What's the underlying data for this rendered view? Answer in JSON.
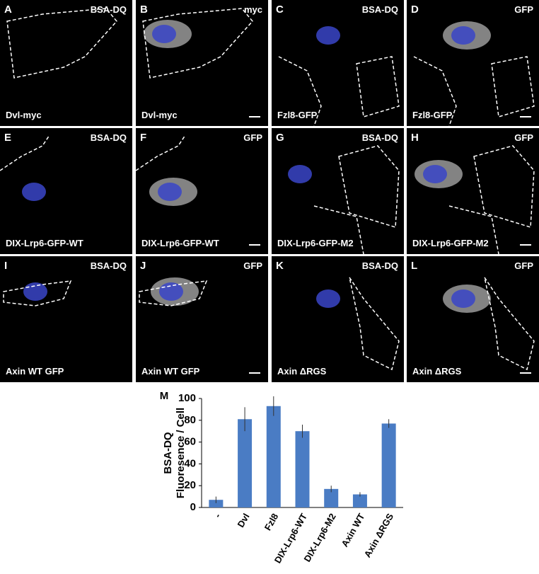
{
  "panels": [
    {
      "letter": "A",
      "stain": "BSA-DQ",
      "construct": "Dvl-myc"
    },
    {
      "letter": "B",
      "stain": "myc",
      "construct": "Dvl-myc"
    },
    {
      "letter": "C",
      "stain": "BSA-DQ",
      "construct": "Fzl8-GFP"
    },
    {
      "letter": "D",
      "stain": "GFP",
      "construct": "Fzl8-GFP"
    },
    {
      "letter": "E",
      "stain": "BSA-DQ",
      "construct": "DIX-Lrp6-GFP-WT"
    },
    {
      "letter": "F",
      "stain": "GFP",
      "construct": "DIX-Lrp6-GFP-WT"
    },
    {
      "letter": "G",
      "stain": "BSA-DQ",
      "construct": "DIX-Lrp6-GFP-M2"
    },
    {
      "letter": "H",
      "stain": "GFP",
      "construct": "DIX-Lrp6-GFP-M2"
    },
    {
      "letter": "I",
      "stain": "BSA-DQ",
      "construct": "Axin WT GFP"
    },
    {
      "letter": "J",
      "stain": "GFP",
      "construct": "Axin WT GFP"
    },
    {
      "letter": "K",
      "stain": "BSA-DQ",
      "construct": "Axin ΔRGS"
    },
    {
      "letter": "L",
      "stain": "GFP",
      "construct": "Axin ΔRGS"
    }
  ],
  "chart_data": {
    "type": "bar",
    "panel_label": "M",
    "ylabel": [
      "BSA-DQ",
      "Fluoresence / Cell"
    ],
    "categories": [
      "-",
      "Dvl",
      "Fzl8",
      "DIX-Lrp6-WT",
      "DIX-Lrp6-M2",
      "Axin WT",
      "Axin ΔRGS"
    ],
    "values": [
      7,
      81,
      93,
      70,
      17,
      12,
      77
    ],
    "errors": [
      3,
      11,
      9,
      6,
      3,
      2,
      4
    ],
    "color": "#4a7cc4",
    "ylim": [
      0,
      100
    ],
    "yticks": [
      0,
      20,
      40,
      60,
      80,
      100
    ]
  }
}
